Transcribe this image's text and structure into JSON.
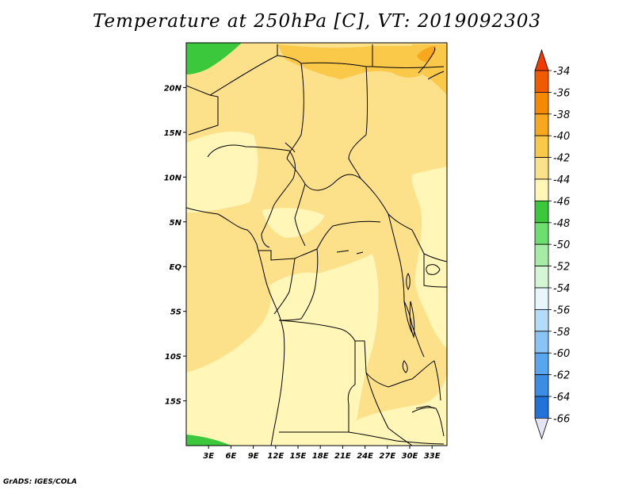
{
  "title": "Temperature at 250hPa [C], VT: 2019092303",
  "credit": "GrADS: IGES/COLA",
  "map": {
    "lon_range": [
      0,
      35
    ],
    "lat_range": [
      -20,
      25
    ],
    "x_ticks": [
      "3E",
      "6E",
      "9E",
      "12E",
      "15E",
      "18E",
      "21E",
      "24E",
      "27E",
      "30E",
      "33E"
    ],
    "x_tick_values": [
      3,
      6,
      9,
      12,
      15,
      18,
      21,
      24,
      27,
      30,
      33
    ],
    "y_ticks": [
      "20N",
      "15N",
      "10N",
      "5N",
      "EQ",
      "5S",
      "10S",
      "15S"
    ],
    "y_tick_values": [
      20,
      15,
      10,
      5,
      0,
      -5,
      -10,
      -15
    ]
  },
  "colorbar": {
    "labels": [
      "-34",
      "-36",
      "-38",
      "-40",
      "-42",
      "-44",
      "-46",
      "-48",
      "-50",
      "-52",
      "-54",
      "-56",
      "-58",
      "-60",
      "-62",
      "-64",
      "-66"
    ],
    "colors": [
      "#f05a00",
      "#f58a00",
      "#f8a81e",
      "#fac94a",
      "#fde08a",
      "#fff6b8",
      "#3cc83c",
      "#6ede6e",
      "#a6eca6",
      "#d4f6d4",
      "#e6f6fb",
      "#b4dcf8",
      "#8ac4f4",
      "#5aa6ee",
      "#3d8ce4",
      "#2272d8",
      "#1454c2",
      "#0c2fa0",
      "#081a6c"
    ],
    "top_color": "#f03c00",
    "bottom_color": "#e4e4f4"
  }
}
